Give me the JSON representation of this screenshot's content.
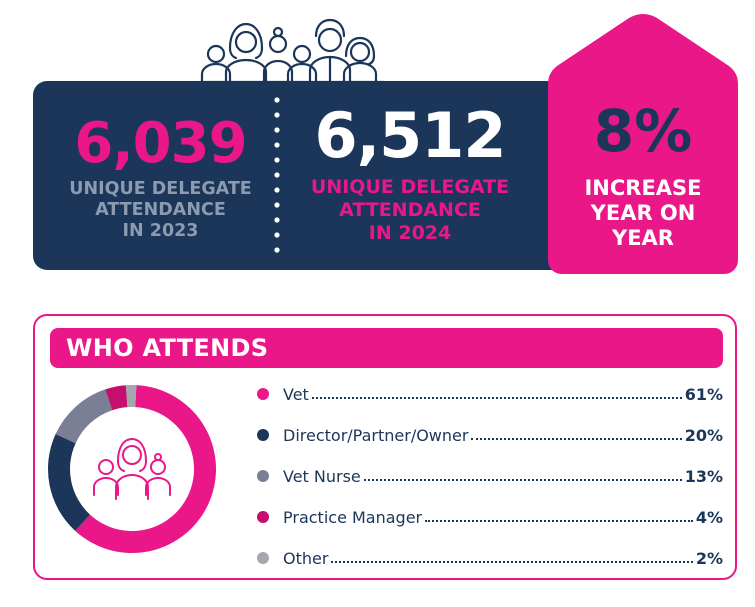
{
  "colors": {
    "navy": "#1b3659",
    "pink": "#ea1788",
    "grey_blue": "#8c9bb0",
    "vet_nurse": "#7b7f95",
    "practice_manager": "#c50f6c",
    "other": "#a6a6ae"
  },
  "stats": {
    "y2023": {
      "number": "6,039",
      "label": [
        "UNIQUE DELEGATE",
        "ATTENDANCE",
        "IN 2023"
      ]
    },
    "y2024": {
      "number": "6,512",
      "label": [
        "UNIQUE DELEGATE",
        "ATTENDANCE",
        "IN 2024"
      ]
    },
    "increase": {
      "number": "8%",
      "label": [
        "INCREASE",
        "YEAR ON",
        "YEAR"
      ]
    }
  },
  "attends": {
    "title": "WHO ATTENDS",
    "items": [
      {
        "label": "Vet",
        "pct_text": "61%",
        "value": 61,
        "color": "#ea1788"
      },
      {
        "label": "Director/Partner/Owner",
        "pct_text": "20%",
        "value": 20,
        "color": "#1b3659"
      },
      {
        "label": "Vet Nurse",
        "pct_text": "13%",
        "value": 13,
        "color": "#7b7f95"
      },
      {
        "label": "Practice Manager",
        "pct_text": "4%",
        "value": 4,
        "color": "#c50f6c"
      },
      {
        "label": "Other",
        "pct_text": "2%",
        "value": 2,
        "color": "#a6a6ae"
      }
    ]
  }
}
